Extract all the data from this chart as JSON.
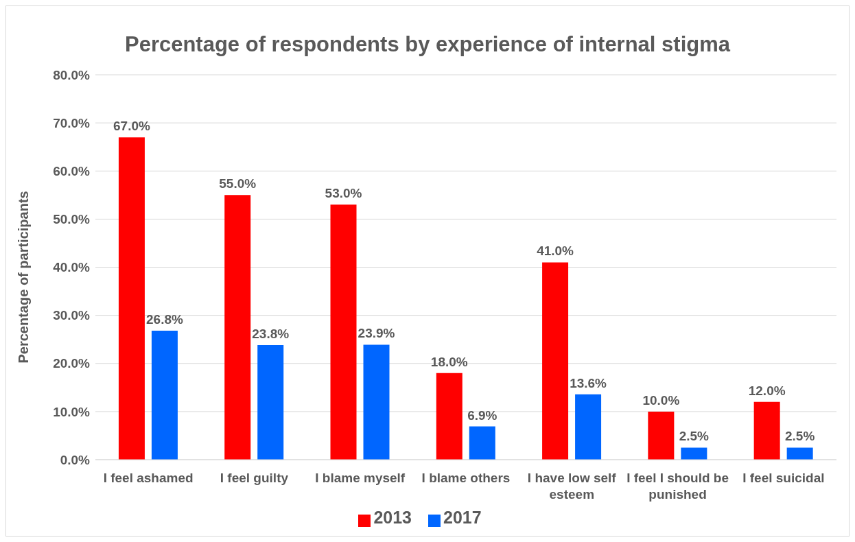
{
  "chart_data": {
    "type": "bar",
    "title": "Percentage of respondents by experience of internal stigma",
    "ylabel": "Percentage of participants",
    "categories": [
      "I feel ashamed",
      "I feel guilty",
      "I blame myself",
      "I blame others",
      "I have low self esteem",
      "I feel I should be punished",
      "I feel suicidal"
    ],
    "series": [
      {
        "name": "2013",
        "color": "#ff0000",
        "values": [
          67.0,
          55.0,
          53.0,
          18.0,
          41.0,
          10.0,
          12.0
        ],
        "value_labels": [
          "67.0%",
          "55.0%",
          "53.0%",
          "18.0%",
          "41.0%",
          "10.0%",
          "12.0%"
        ]
      },
      {
        "name": "2017",
        "color": "#0066ff",
        "values": [
          26.8,
          23.8,
          23.9,
          6.9,
          13.6,
          2.5,
          2.5
        ],
        "value_labels": [
          "26.8%",
          "23.8%",
          "23.9%",
          "6.9%",
          "13.6%",
          "2.5%",
          "2.5%"
        ]
      }
    ],
    "ylim": [
      0,
      80
    ],
    "yticks": [
      {
        "value": 0,
        "label": "0.0%"
      },
      {
        "value": 10,
        "label": "10.0%"
      },
      {
        "value": 20,
        "label": "20.0%"
      },
      {
        "value": 30,
        "label": "30.0%"
      },
      {
        "value": 40,
        "label": "40.0%"
      },
      {
        "value": 50,
        "label": "50.0%"
      },
      {
        "value": 60,
        "label": "60.0%"
      },
      {
        "value": 70,
        "label": "70.0%"
      },
      {
        "value": 80,
        "label": "80.0%"
      }
    ],
    "grid": "y",
    "legend": "bottom"
  }
}
